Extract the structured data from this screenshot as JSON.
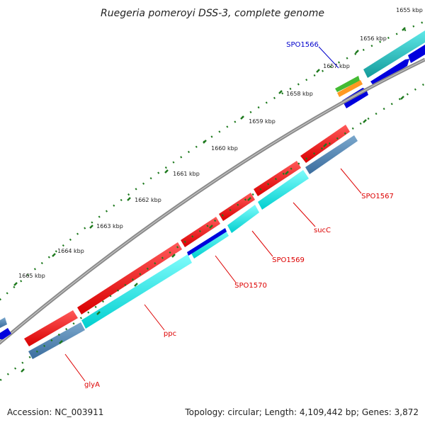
{
  "title": "Ruegeria pomeroyi DSS-3, complete genome",
  "footer": {
    "accession": "Accession: NC_003911",
    "topology": "Topology: circular; Length: 4,109,442 bp; Genes: 3,872"
  },
  "ticks": [
    "1655 kbp",
    "1656 kbp",
    "1657 kbp",
    "1658 kbp",
    "1659 kbp",
    "1660 kbp",
    "1661 kbp",
    "1662 kbp",
    "1663 kbp",
    "1664 kbp",
    "1665 kbp"
  ],
  "gene_labels": [
    "SPO1566",
    "SPO1567",
    "sucC",
    "SPO1569",
    "SPO1570",
    "ppc",
    "glyA"
  ],
  "colors": {
    "backbone": "#8a8a8a",
    "tick": "#1e7a1e",
    "cds_forward": "#ee1111",
    "cds_reverse_a": "#00e5e5",
    "cds_reverse_b": "#4c7faf",
    "blast": "#0000dd",
    "misc_green": "#44bb33",
    "misc_orange": "#ff9922",
    "label_red": "#dd0000",
    "label_blue": "#0000cc"
  }
}
